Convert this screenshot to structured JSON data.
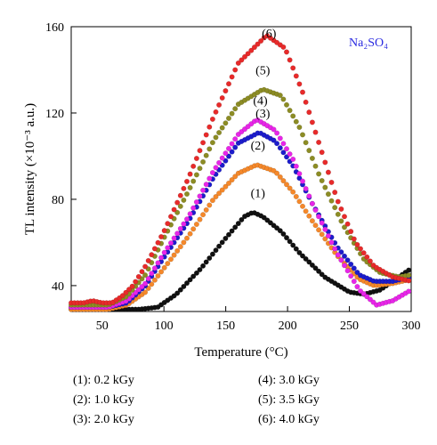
{
  "chart_data": {
    "type": "scatter",
    "title": "",
    "annotation": "Na₂SO₄",
    "xlabel": "Temperature (°C)",
    "ylabel": "TL intensity (×10⁻³ a.u.)",
    "xlim": [
      25,
      300
    ],
    "ylim": [
      28,
      160
    ],
    "xticks": [
      50,
      100,
      150,
      200,
      250,
      300
    ],
    "yticks": [
      40,
      80,
      120,
      160
    ],
    "grid": false,
    "series": [
      {
        "name": "(1)",
        "color": "#111111",
        "x": [
          25,
          60,
          80,
          95,
          110,
          130,
          150,
          165,
          172,
          180,
          195,
          210,
          230,
          250,
          262,
          275,
          290,
          300
        ],
        "y": [
          29,
          29,
          29,
          30,
          36,
          48,
          62,
          72,
          74,
          72,
          65,
          55,
          44,
          37,
          36,
          38,
          44,
          48
        ]
      },
      {
        "name": "(2)",
        "color": "#f5882a",
        "x": [
          25,
          55,
          70,
          85,
          100,
          120,
          140,
          160,
          175,
          190,
          205,
          220,
          240,
          258,
          270,
          285,
          300
        ],
        "y": [
          29,
          29,
          31,
          37,
          48,
          63,
          80,
          92,
          96,
          93,
          83,
          70,
          54,
          43,
          40,
          41,
          43
        ]
      },
      {
        "name": "(3)",
        "color": "#1c1ccc",
        "x": [
          25,
          55,
          70,
          85,
          100,
          120,
          140,
          160,
          177,
          190,
          205,
          220,
          240,
          258,
          270,
          285,
          300
        ],
        "y": [
          30,
          30,
          32,
          40,
          53,
          70,
          90,
          106,
          111,
          107,
          95,
          78,
          58,
          45,
          42,
          42,
          44
        ]
      },
      {
        "name": "(4)",
        "color": "#e825e8",
        "x": [
          25,
          55,
          70,
          85,
          100,
          120,
          140,
          160,
          175,
          190,
          205,
          220,
          240,
          258,
          272,
          285,
          300
        ],
        "y": [
          30,
          30,
          33,
          41,
          55,
          72,
          93,
          110,
          117,
          112,
          98,
          78,
          55,
          38,
          31,
          33,
          38
        ]
      },
      {
        "name": "(5)",
        "color": "#8c8c24",
        "x": [
          25,
          55,
          70,
          85,
          100,
          120,
          140,
          160,
          180,
          195,
          210,
          225,
          245,
          262,
          275,
          290,
          300
        ],
        "y": [
          31,
          31,
          35,
          45,
          62,
          84,
          107,
          124,
          131,
          128,
          113,
          92,
          68,
          52,
          46,
          44,
          45
        ]
      },
      {
        "name": "(6)",
        "color": "#e82a2a",
        "x": [
          25,
          35,
          42,
          50,
          58,
          66,
          75,
          85,
          100,
          120,
          140,
          160,
          183,
          198,
          212,
          226,
          240,
          255,
          270,
          285,
          300
        ],
        "y": [
          32,
          32,
          33,
          32,
          32,
          35,
          40,
          49,
          65,
          90,
          118,
          143,
          156,
          150,
          130,
          105,
          80,
          60,
          49,
          44,
          42
        ]
      }
    ],
    "curve_labels": [
      {
        "text": "(1)",
        "x": 176,
        "y": 81
      },
      {
        "text": "(2)",
        "x": 176,
        "y": 103
      },
      {
        "text": "(3)",
        "x": 180,
        "y": 118
      },
      {
        "text": "(4)",
        "x": 178,
        "y": 124
      },
      {
        "text": "(5)",
        "x": 180,
        "y": 138
      },
      {
        "text": "(6)",
        "x": 185,
        "y": 155
      }
    ]
  },
  "legend": [
    {
      "text": "(1): 0.2 kGy"
    },
    {
      "text": "(2): 1.0 kGy"
    },
    {
      "text": "(3): 2.0 kGy"
    },
    {
      "text": "(4): 3.0 kGy"
    },
    {
      "text": "(5): 3.5 kGy"
    },
    {
      "text": "(6): 4.0 kGy"
    }
  ]
}
